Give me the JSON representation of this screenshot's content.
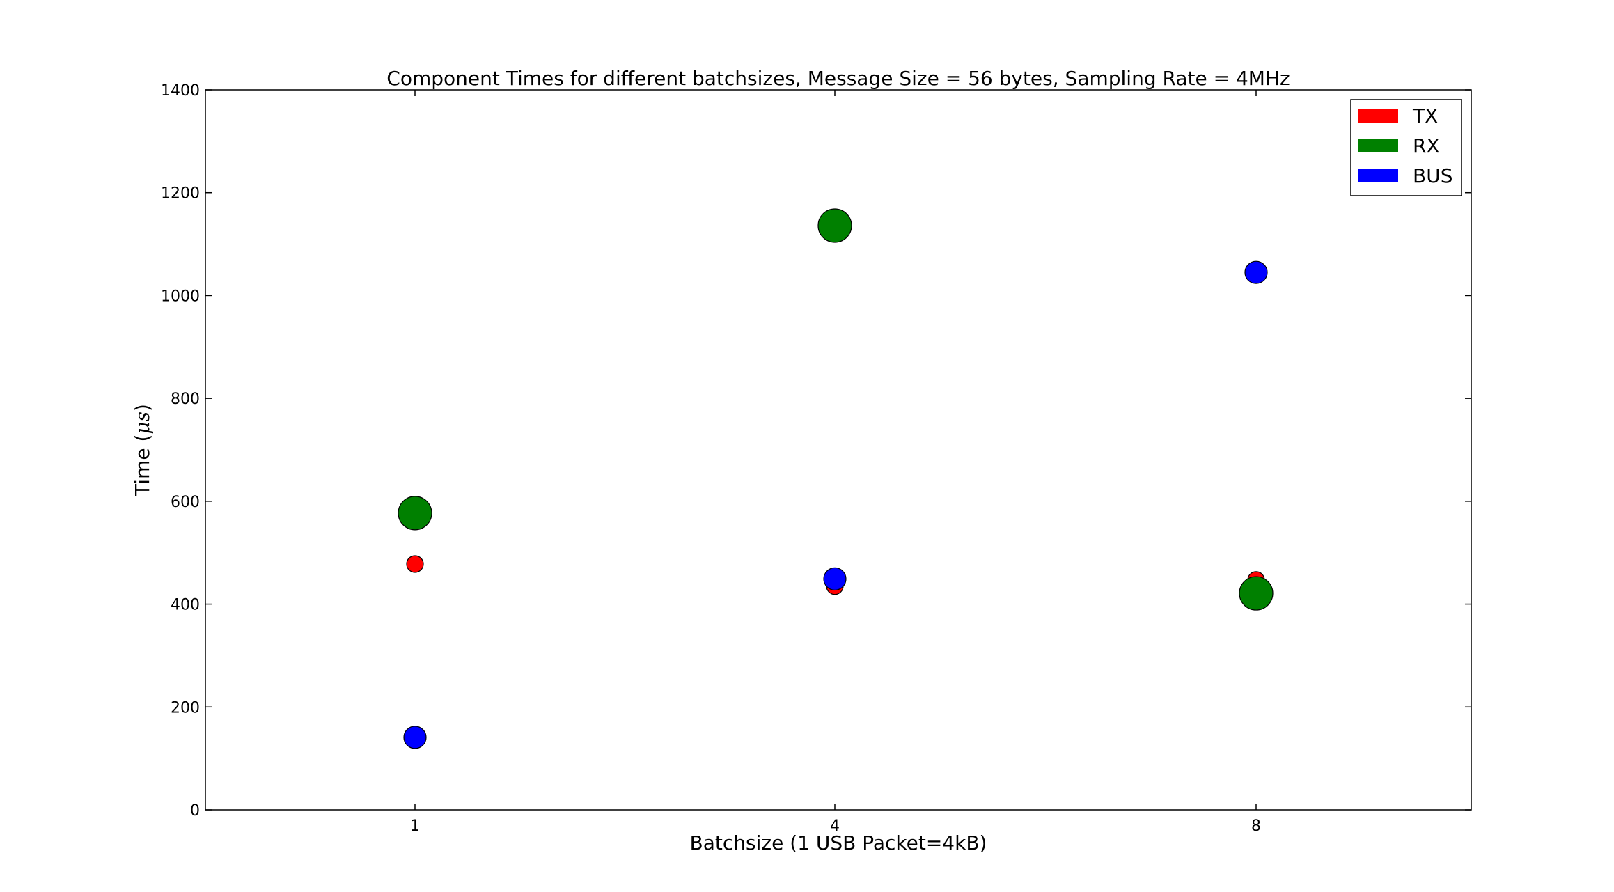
{
  "chart_data": {
    "type": "scatter",
    "title": "Component Times for different batchsizes, Message Size = 56 bytes, Sampling Rate = 4MHz",
    "xlabel": "Batchsize (1 USB Packet=4kB)",
    "ylabel": "Time (μs)",
    "ylabel_prefix": "Time (",
    "ylabel_unit": "μs",
    "ylabel_suffix": ")",
    "categories": [
      "1",
      "4",
      "8"
    ],
    "ylim": [
      0,
      1400
    ],
    "yticks": [
      0,
      200,
      400,
      600,
      800,
      1000,
      1200,
      1400
    ],
    "grid": false,
    "legend_position": "top-right",
    "series": [
      {
        "name": "TX",
        "color": "#ff0000",
        "marker_size": "small",
        "values": [
          478,
          435,
          447
        ]
      },
      {
        "name": "RX",
        "color": "#008000",
        "marker_size": "large",
        "values": [
          577,
          1136,
          421
        ]
      },
      {
        "name": "BUS",
        "color": "#0000ff",
        "marker_size": "medium",
        "values": [
          141,
          449,
          1045
        ]
      }
    ]
  }
}
